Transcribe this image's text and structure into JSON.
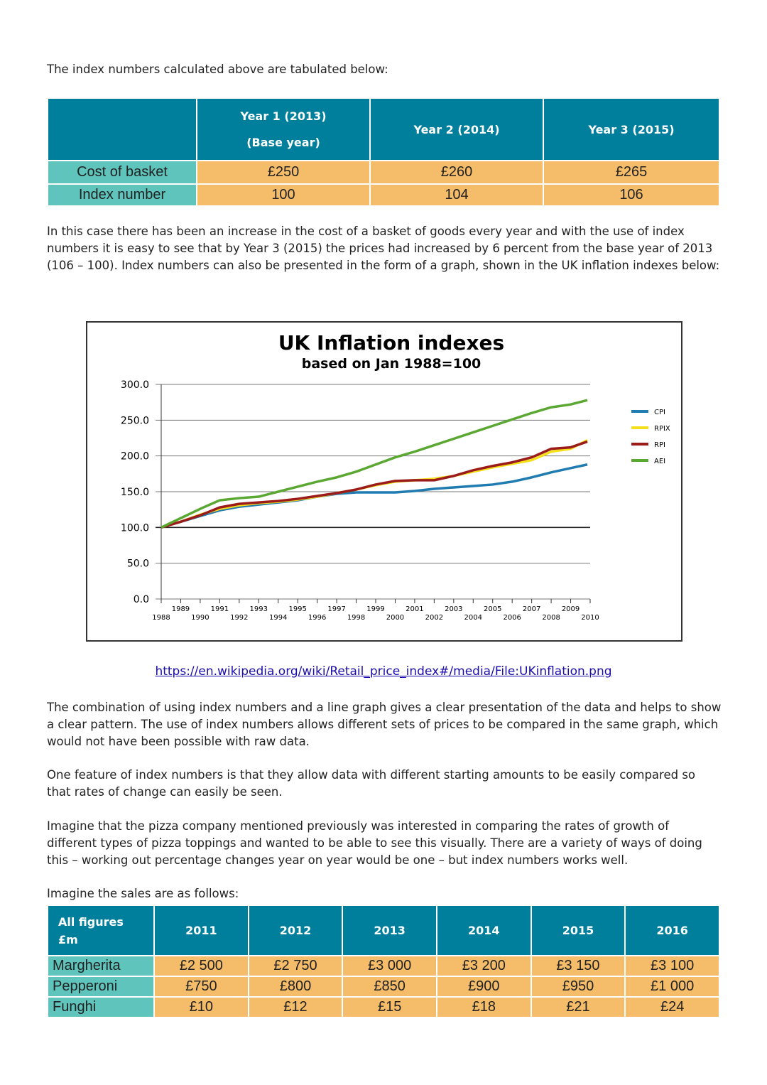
{
  "intro": "The index numbers calculated above are tabulated below:",
  "table1": {
    "headers": [
      "",
      "Year 1 (2013)",
      "Year 2 (2014)",
      "Year 3 (2015)"
    ],
    "header_sub": "(Base year)",
    "rows": [
      {
        "label": "Cost of basket",
        "values": [
          "£250",
          "£260",
          "£265"
        ]
      },
      {
        "label": "Index number",
        "values": [
          "100",
          "104",
          "106"
        ]
      }
    ]
  },
  "para1": "In this case there has been an increase in the cost of a basket of goods every year and with the use of index numbers it is easy to see that by Year 3 (2015) the prices had increased by 6 percent from the base year of 2013 (106 – 100). Index numbers can also be presented in the form of a graph, shown in the UK inflation indexes below:",
  "chart_data": {
    "type": "line",
    "title": "UK Inflation indexes",
    "subtitle": "based on Jan 1988=100",
    "x": [
      1988,
      1989,
      1990,
      1991,
      1992,
      1993,
      1994,
      1995,
      1996,
      1997,
      1998,
      1999,
      2000,
      2001,
      2002,
      2003,
      2004,
      2005,
      2006,
      2007,
      2008,
      2009,
      2010
    ],
    "ylim": [
      0,
      300
    ],
    "yticks": [
      "0.0",
      "50.0",
      "100.0",
      "150.0",
      "200.0",
      "250.0",
      "300.0"
    ],
    "grid": true,
    "legend": "right",
    "series": [
      {
        "name": "CPI",
        "color": "#1f7bb0",
        "values": [
          100,
          108,
          116,
          124,
          129,
          132,
          135,
          138,
          143,
          147,
          149,
          149,
          149,
          151,
          154,
          156,
          158,
          160,
          164,
          170,
          177,
          183,
          188
        ]
      },
      {
        "name": "RPIX",
        "color": "#f3e01a",
        "values": [
          100,
          108,
          118,
          126,
          131,
          134,
          136,
          139,
          143,
          148,
          153,
          159,
          164,
          166,
          168,
          172,
          178,
          184,
          189,
          194,
          206,
          210,
          222
        ]
      },
      {
        "name": "RPI",
        "color": "#9b1b1b",
        "values": [
          100,
          108,
          117,
          128,
          133,
          135,
          137,
          140,
          144,
          148,
          153,
          160,
          165,
          166,
          166,
          172,
          180,
          186,
          191,
          198,
          210,
          212,
          220
        ]
      },
      {
        "name": "AEI",
        "color": "#5aa832",
        "values": [
          100,
          113,
          126,
          138,
          141,
          143,
          150,
          157,
          164,
          170,
          178,
          188,
          198,
          206,
          215,
          224,
          233,
          242,
          251,
          260,
          268,
          272,
          278
        ]
      }
    ]
  },
  "link": "https://en.wikipedia.org/wiki/Retail_price_index#/media/File:UKinflation.png",
  "para2": "The combination of using index numbers and a line graph gives a clear presentation of the data and helps to show a clear pattern. The use of index numbers allows different sets of prices to be compared in the same graph, which would not have been possible with raw data.",
  "para3": "One feature of index numbers is that they allow data with different starting amounts to be easily compared so that rates of change can easily be seen.",
  "para4": "Imagine that the pizza company mentioned previously was interested in comparing the rates of growth of different types of pizza toppings and wanted to be able to see this visually. There are a variety of ways of doing this – working out percentage changes year on year would be one – but index numbers works well.",
  "para5": "Imagine the sales are as follows:",
  "table2": {
    "corner": [
      "All figures",
      "£m"
    ],
    "headers": [
      "2011",
      "2012",
      "2013",
      "2014",
      "2015",
      "2016"
    ],
    "rows": [
      {
        "label": "Margherita",
        "values": [
          "£2 500",
          "£2 750",
          "£3 000",
          "£3 200",
          "£3 150",
          "£3 100"
        ]
      },
      {
        "label": "Pepperoni",
        "values": [
          "£750",
          "£800",
          "£850",
          "£900",
          "£950",
          "£1 000"
        ]
      },
      {
        "label": "Funghi",
        "values": [
          "£10",
          "£12",
          "£15",
          "£18",
          "£21",
          "£24"
        ]
      }
    ]
  },
  "colors": {
    "header": "#007f9c",
    "cell": "#f5bd6a",
    "label": "#5fc4bb"
  }
}
